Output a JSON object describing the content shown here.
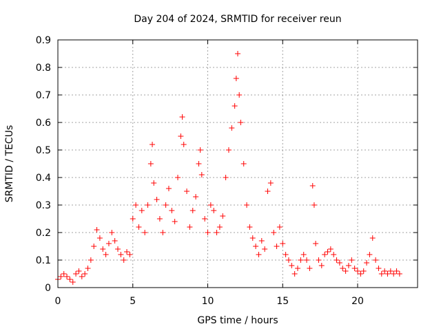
{
  "chart_data": {
    "type": "scatter",
    "title": "Day 204 of 2024, SRMTID for receiver reun",
    "xlabel": "GPS time / hours",
    "ylabel": "SRMTID / TECUs",
    "xlim": [
      0,
      24
    ],
    "ylim": [
      0,
      0.9
    ],
    "xticks": [
      0,
      5,
      10,
      15,
      20
    ],
    "xtick_labels": [
      "0",
      "5",
      "10",
      "15",
      "20"
    ],
    "yticks": [
      0,
      0.1,
      0.2,
      0.3,
      0.4,
      0.5,
      0.6,
      0.7,
      0.8,
      0.9
    ],
    "ytick_labels": [
      "0",
      "0.1",
      "0.2",
      "0.3",
      "0.4",
      "0.5",
      "0.6",
      "0.7",
      "0.8",
      "0.9"
    ],
    "grid": true,
    "marker": "+",
    "color": "#ff0000",
    "series": [
      {
        "name": "SRMTID",
        "x": [
          0.0,
          0.2,
          0.4,
          0.6,
          0.8,
          1.0,
          1.2,
          1.4,
          1.6,
          1.8,
          2.0,
          2.2,
          2.4,
          2.6,
          2.8,
          3.0,
          3.2,
          3.4,
          3.6,
          3.8,
          4.0,
          4.2,
          4.4,
          4.6,
          4.8,
          5.0,
          5.2,
          5.4,
          5.6,
          5.8,
          6.0,
          6.2,
          6.3,
          6.4,
          6.6,
          6.8,
          7.0,
          7.2,
          7.4,
          7.6,
          7.8,
          8.0,
          8.2,
          8.3,
          8.4,
          8.6,
          8.8,
          9.0,
          9.2,
          9.4,
          9.5,
          9.6,
          9.8,
          10.0,
          10.2,
          10.4,
          10.6,
          10.8,
          11.0,
          11.2,
          11.4,
          11.6,
          11.8,
          11.9,
          12.0,
          12.1,
          12.2,
          12.4,
          12.6,
          12.8,
          13.0,
          13.2,
          13.4,
          13.6,
          13.8,
          14.0,
          14.2,
          14.4,
          14.6,
          14.8,
          15.0,
          15.2,
          15.4,
          15.6,
          15.8,
          16.0,
          16.2,
          16.4,
          16.6,
          16.8,
          17.0,
          17.1,
          17.2,
          17.4,
          17.6,
          17.8,
          18.0,
          18.2,
          18.4,
          18.6,
          18.8,
          19.0,
          19.2,
          19.4,
          19.6,
          19.8,
          20.0,
          20.2,
          20.4,
          20.6,
          20.8,
          21.0,
          21.2,
          21.4,
          21.6,
          21.8,
          22.0,
          22.2,
          22.4,
          22.6,
          22.8
        ],
        "y": [
          0.03,
          0.04,
          0.05,
          0.04,
          0.03,
          0.02,
          0.05,
          0.06,
          0.04,
          0.05,
          0.07,
          0.1,
          0.15,
          0.21,
          0.18,
          0.14,
          0.12,
          0.16,
          0.2,
          0.17,
          0.14,
          0.12,
          0.1,
          0.13,
          0.12,
          0.25,
          0.3,
          0.22,
          0.28,
          0.2,
          0.3,
          0.45,
          0.52,
          0.38,
          0.32,
          0.25,
          0.2,
          0.3,
          0.36,
          0.28,
          0.24,
          0.4,
          0.55,
          0.62,
          0.52,
          0.35,
          0.22,
          0.28,
          0.33,
          0.45,
          0.5,
          0.41,
          0.25,
          0.2,
          0.3,
          0.28,
          0.2,
          0.22,
          0.26,
          0.4,
          0.5,
          0.58,
          0.66,
          0.76,
          0.85,
          0.7,
          0.6,
          0.45,
          0.3,
          0.22,
          0.18,
          0.15,
          0.12,
          0.17,
          0.14,
          0.35,
          0.38,
          0.2,
          0.15,
          0.22,
          0.16,
          0.12,
          0.1,
          0.08,
          0.05,
          0.07,
          0.1,
          0.12,
          0.1,
          0.07,
          0.37,
          0.3,
          0.16,
          0.1,
          0.08,
          0.12,
          0.13,
          0.14,
          0.12,
          0.1,
          0.09,
          0.07,
          0.06,
          0.08,
          0.1,
          0.07,
          0.06,
          0.05,
          0.06,
          0.09,
          0.12,
          0.18,
          0.1,
          0.07,
          0.05,
          0.06,
          0.05,
          0.06,
          0.05,
          0.06,
          0.05
        ]
      }
    ]
  }
}
